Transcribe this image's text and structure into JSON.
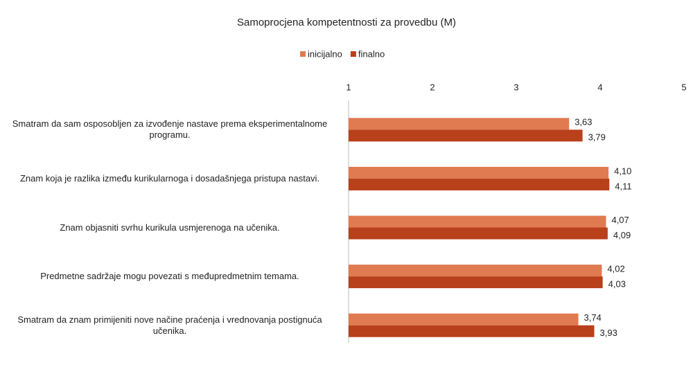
{
  "chart_data": {
    "type": "hbar",
    "title": "Samoprocjena kompetentnosti za provedbu (M)",
    "categories": [
      "Smatram da sam osposobljen za izvođenje nastave prema eksperimentalnome programu.",
      "Znam koja je razlika između kurikularnoga i dosadašnjega pristupa nastavi.",
      "Znam objasniti svrhu kurikula usmjerenoga na učenika.",
      "Predmetne sadržaje mogu povezati s međupredmetnim temama.",
      "Smatram da znam primijeniti nove načine praćenja i vrednovanja postignuća učenika."
    ],
    "series": [
      {
        "name": "inicijalno",
        "color": "#e07a50",
        "values": [
          3.63,
          4.1,
          4.07,
          4.02,
          3.74
        ],
        "value_labels": [
          "3,63",
          "4,10",
          "4,07",
          "4,02",
          "3,74"
        ]
      },
      {
        "name": "finalno",
        "color": "#b8401a",
        "values": [
          3.79,
          4.11,
          4.09,
          4.03,
          3.93
        ],
        "value_labels": [
          "3,79",
          "4,11",
          "4,09",
          "4,03",
          "3,93"
        ]
      }
    ],
    "xlim": [
      1,
      5
    ],
    "xticks": [
      1,
      2,
      3,
      4,
      5
    ],
    "legend": "top"
  }
}
